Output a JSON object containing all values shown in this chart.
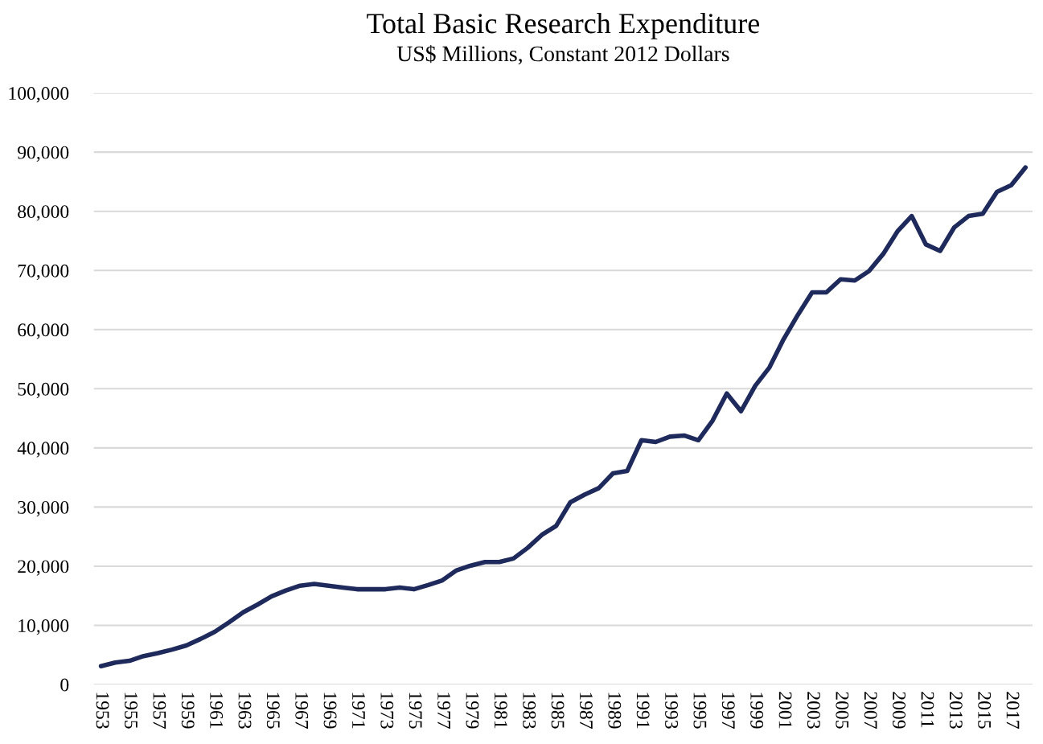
{
  "chart_data": {
    "type": "line",
    "title": "Total Basic Research Expenditure",
    "subtitle": "US$ Millions, Constant 2012 Dollars",
    "categories": [
      "1953",
      null,
      "1955",
      null,
      "1957",
      null,
      "1959",
      null,
      "1961",
      null,
      "1963",
      null,
      "1965",
      null,
      "1967",
      null,
      "1969",
      null,
      "1971",
      null,
      "1973",
      null,
      "1975",
      null,
      "1977",
      null,
      "1979",
      null,
      "1981",
      null,
      "1983",
      null,
      "1985",
      null,
      "1987",
      null,
      "1989",
      null,
      "1991",
      null,
      "1993",
      null,
      "1995",
      null,
      "1997",
      null,
      "1999",
      null,
      "2001",
      null,
      "2003",
      null,
      "2005",
      null,
      "2007",
      null,
      "2009",
      null,
      "2011",
      null,
      "2013",
      null,
      "2015",
      null,
      "2017",
      null
    ],
    "series": [
      {
        "color": "#1f2a5c",
        "values": [
          3100,
          3700,
          4000,
          4800,
          5300,
          5900,
          6600,
          7700,
          8900,
          10500,
          12200,
          13500,
          14900,
          15900,
          16700,
          17000,
          16700,
          16400,
          16100,
          16100,
          16100,
          16400,
          16100,
          16800,
          17600,
          19300,
          20100,
          20700,
          20700,
          21300,
          23100,
          25300,
          26800,
          30800,
          32100,
          33200,
          35700,
          36100,
          41300,
          41000,
          41900,
          42100,
          41300,
          44600,
          49200,
          46200,
          50500,
          53600,
          58400,
          62500,
          66300,
          66300,
          68500,
          68300,
          69900,
          72800,
          76600,
          79200,
          74400,
          73300,
          77300,
          79200,
          79600,
          83300,
          84400,
          87400
        ]
      }
    ],
    "ylim": [
      0,
      100000
    ],
    "yticks": [
      0,
      {
        "value": 10000,
        "label": "10,000"
      },
      {
        "value": 20000,
        "label": "20,000"
      },
      {
        "value": 30000,
        "label": "30,000"
      },
      {
        "value": 40000,
        "label": "40,000"
      },
      {
        "value": 50000,
        "label": "50,000"
      },
      {
        "value": 60000,
        "label": "60,000"
      },
      {
        "value": 70000,
        "label": "70,000"
      },
      {
        "value": 80000,
        "label": "80,000"
      },
      {
        "value": 90000,
        "label": "90,000"
      },
      {
        "value": 100000,
        "label": "100,000"
      }
    ],
    "grid": "y",
    "legend": false,
    "marker": "none",
    "line_style": "solid"
  }
}
